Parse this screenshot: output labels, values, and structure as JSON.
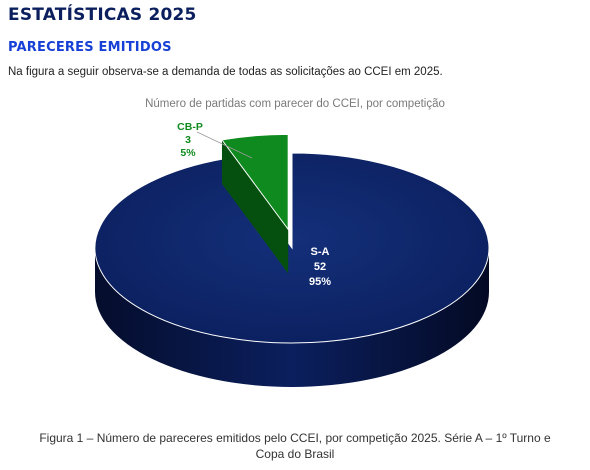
{
  "header": {
    "page_title": "ESTATÍSTICAS 2025",
    "section_title": "PARECERES EMITIDOS",
    "intro": "Na figura a seguir observa-se a demanda de todas as solicitações ao CCEI em 2025."
  },
  "chart_data": {
    "type": "pie",
    "title": "Número de partidas com parecer do CCEI, por competição",
    "slices": [
      {
        "label": "S-A",
        "value": 52,
        "percent": "95%",
        "color": "#0b1f5e"
      },
      {
        "label": "CB-P",
        "value": 3,
        "percent": "5%",
        "color": "#0f8a1e"
      }
    ],
    "exploded": "CB-P",
    "style": "3d"
  },
  "caption": {
    "line1": "Figura 1 – Número de pareceres emitidos pelo CCEI, por competição 2025. Série A – 1º Turno e",
    "line2": "Copa do Brasil"
  }
}
